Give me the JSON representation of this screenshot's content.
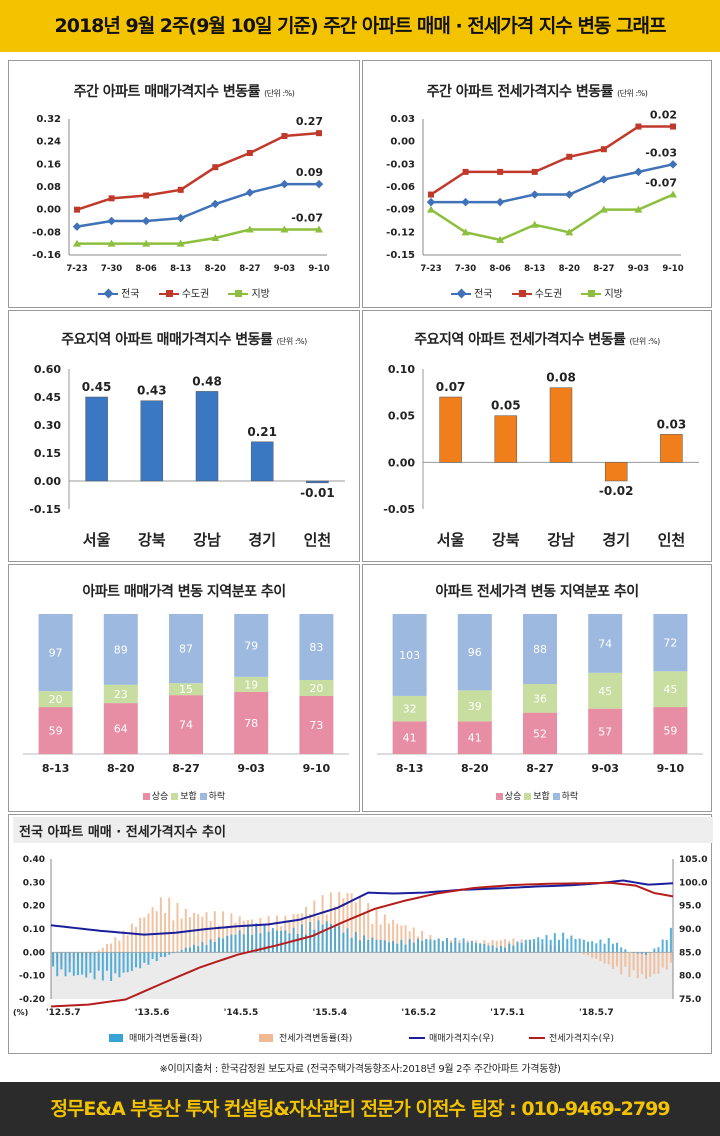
{
  "header": {
    "title": "2018년 9월 2주(9월 10일 기준) 주간 아파트 매매 · 전세가격 지수 변동 그래프"
  },
  "legend_labels": {
    "nation": "전국",
    "capital": "수도권",
    "region": "지방",
    "rise": "상승",
    "flat": "보합",
    "fall": "하락"
  },
  "unit_label": "(단위 :%)",
  "chart_data": [
    {
      "type": "line",
      "title": "주간 아파트 매매가격지수 변동률",
      "categories": [
        "7-23",
        "7-30",
        "8-06",
        "8-13",
        "8-20",
        "8-27",
        "9-03",
        "9-10"
      ],
      "series": [
        {
          "name": "전국",
          "color": "#3f72b8",
          "values": [
            -0.06,
            -0.04,
            -0.04,
            -0.03,
            0.02,
            0.06,
            0.09,
            0.09
          ]
        },
        {
          "name": "수도권",
          "color": "#c0392b",
          "values": [
            0.0,
            0.04,
            0.05,
            0.07,
            0.15,
            0.2,
            0.26,
            0.27
          ]
        },
        {
          "name": "지방",
          "color": "#8cbf3f",
          "values": [
            -0.12,
            -0.12,
            -0.12,
            -0.12,
            -0.1,
            -0.07,
            -0.07,
            -0.07
          ]
        }
      ],
      "labels": [
        {
          "series": 1,
          "index": 7,
          "text": "0.27"
        },
        {
          "series": 0,
          "index": 7,
          "text": "0.09"
        },
        {
          "series": 2,
          "index": 7,
          "text": "-0.07"
        }
      ],
      "ylim": [
        -0.16,
        0.32
      ],
      "yticks": [
        "0.32",
        "0.24",
        "0.16",
        "0.08",
        "0.00",
        "-0.08",
        "-0.16"
      ]
    },
    {
      "type": "line",
      "title": "주간 아파트 전세가격지수 변동률",
      "categories": [
        "7-23",
        "7-30",
        "8-06",
        "8-13",
        "8-20",
        "8-27",
        "9-03",
        "9-10"
      ],
      "series": [
        {
          "name": "전국",
          "color": "#3f72b8",
          "values": [
            -0.08,
            -0.08,
            -0.08,
            -0.07,
            -0.07,
            -0.05,
            -0.04,
            -0.03
          ]
        },
        {
          "name": "수도권",
          "color": "#c0392b",
          "values": [
            -0.07,
            -0.04,
            -0.04,
            -0.04,
            -0.02,
            -0.01,
            0.02,
            0.02
          ]
        },
        {
          "name": "지방",
          "color": "#8cbf3f",
          "values": [
            -0.09,
            -0.12,
            -0.13,
            -0.11,
            -0.12,
            -0.09,
            -0.09,
            -0.07
          ]
        }
      ],
      "labels": [
        {
          "series": 1,
          "index": 7,
          "text": "0.02"
        },
        {
          "series": 0,
          "index": 7,
          "text": "-0.03"
        },
        {
          "series": 2,
          "index": 7,
          "text": "-0.07"
        }
      ],
      "ylim": [
        -0.15,
        0.03
      ],
      "yticks": [
        "0.03",
        "0.00",
        "-0.03",
        "-0.06",
        "-0.09",
        "-0.12",
        "-0.15"
      ]
    },
    {
      "type": "bar",
      "title": "주요지역 아파트 매매가격지수 변동률",
      "categories": [
        "서울",
        "강북",
        "강남",
        "경기",
        "인천"
      ],
      "values": [
        0.45,
        0.43,
        0.48,
        0.21,
        -0.01
      ],
      "value_labels": [
        "0.45",
        "0.43",
        "0.48",
        "0.21",
        "-0.01"
      ],
      "color": "#3a78c4",
      "ylim": [
        -0.15,
        0.6
      ],
      "yticks": [
        "0.60",
        "0.45",
        "0.30",
        "0.15",
        "0.00",
        "-0.15"
      ]
    },
    {
      "type": "bar",
      "title": "주요지역 아파트 전세가격지수 변동률",
      "categories": [
        "서울",
        "강북",
        "강남",
        "경기",
        "인천"
      ],
      "values": [
        0.07,
        0.05,
        0.08,
        -0.02,
        0.03
      ],
      "value_labels": [
        "0.07",
        "0.05",
        "0.08",
        "-0.02",
        "0.03"
      ],
      "color": "#f07e1a",
      "ylim": [
        -0.05,
        0.1
      ],
      "yticks": [
        "0.10",
        "0.05",
        "0.00",
        "-0.05"
      ]
    },
    {
      "type": "bar",
      "stacked": true,
      "title": "아파트 매매가격 변동 지역분포 추이",
      "categories": [
        "8-13",
        "8-20",
        "8-27",
        "9-03",
        "9-10"
      ],
      "series": [
        {
          "name": "상승",
          "color": "#e88ea4",
          "values": [
            59,
            64,
            74,
            78,
            73
          ]
        },
        {
          "name": "보합",
          "color": "#c7dea0",
          "values": [
            20,
            23,
            15,
            19,
            20
          ]
        },
        {
          "name": "하락",
          "color": "#9db9e0",
          "values": [
            97,
            89,
            87,
            79,
            83
          ]
        }
      ]
    },
    {
      "type": "bar",
      "stacked": true,
      "title": "아파트 전세가격 변동 지역분포 추이",
      "categories": [
        "8-13",
        "8-20",
        "8-27",
        "9-03",
        "9-10"
      ],
      "series": [
        {
          "name": "상승",
          "color": "#e88ea4",
          "values": [
            41,
            41,
            52,
            57,
            59
          ]
        },
        {
          "name": "보합",
          "color": "#c7dea0",
          "values": [
            32,
            39,
            36,
            45,
            45
          ]
        },
        {
          "name": "하락",
          "color": "#9db9e0",
          "values": [
            103,
            96,
            88,
            74,
            72
          ]
        }
      ]
    },
    {
      "type": "area",
      "title": "전국 아파트 매매 · 전세가격지수 추이",
      "xticks": [
        "'12.5.7",
        "'13.5.6",
        "'14.5.5",
        "'15.5.4",
        "'16.5.2",
        "'17.5.1",
        "'18.5.7"
      ],
      "x_prefix": "(%)",
      "y_left": {
        "ylim": [
          -0.2,
          0.4
        ],
        "ticks": [
          "0.40",
          "0.30",
          "0.20",
          "0.10",
          "0.00",
          "-0.10",
          "-0.20"
        ]
      },
      "y_right": {
        "ylim": [
          75.0,
          105.0
        ],
        "ticks": [
          "105.0",
          "100.0",
          "95.0",
          "90.0",
          "85.0",
          "80.0",
          "75.0"
        ]
      },
      "series": [
        {
          "name": "매매가격변동률(좌)",
          "color": "#3aa3d6",
          "anchors": [
            [
              0,
              -0.08
            ],
            [
              10,
              -0.1
            ],
            [
              15,
              -0.05
            ],
            [
              22,
              0.02
            ],
            [
              28,
              0.06
            ],
            [
              33,
              0.1
            ],
            [
              38,
              0.08
            ],
            [
              44,
              0.12
            ],
            [
              50,
              0.06
            ],
            [
              55,
              0.04
            ],
            [
              60,
              0.05
            ],
            [
              66,
              0.05
            ],
            [
              72,
              0.02
            ],
            [
              77,
              0.05
            ],
            [
              82,
              0.07
            ],
            [
              87,
              0.04
            ],
            [
              90,
              0.05
            ],
            [
              93,
              0.0
            ],
            [
              96,
              -0.01
            ],
            [
              99,
              0.06
            ],
            [
              100,
              0.1
            ]
          ]
        },
        {
          "name": "전세가격변동률(좌)",
          "color": "#f0b893",
          "anchors": [
            [
              0,
              -0.05
            ],
            [
              6,
              -0.02
            ],
            [
              12,
              0.08
            ],
            [
              18,
              0.2
            ],
            [
              22,
              0.15
            ],
            [
              28,
              0.14
            ],
            [
              33,
              0.12
            ],
            [
              38,
              0.13
            ],
            [
              44,
              0.2
            ],
            [
              48,
              0.23
            ],
            [
              52,
              0.15
            ],
            [
              57,
              0.1
            ],
            [
              62,
              0.05
            ],
            [
              68,
              0.04
            ],
            [
              74,
              0.05
            ],
            [
              80,
              0.03
            ],
            [
              85,
              0.0
            ],
            [
              88,
              -0.03
            ],
            [
              92,
              -0.08
            ],
            [
              96,
              -0.1
            ],
            [
              99,
              -0.06
            ],
            [
              100,
              -0.05
            ]
          ]
        },
        {
          "name": "매매가격지수(우)",
          "color": "#1a1f9c",
          "anchors": [
            [
              0,
              90.8
            ],
            [
              8,
              89.6
            ],
            [
              15,
              88.8
            ],
            [
              20,
              89.2
            ],
            [
              25,
              90.0
            ],
            [
              30,
              90.6
            ],
            [
              35,
              91.0
            ],
            [
              40,
              92.0
            ],
            [
              46,
              94.5
            ],
            [
              51,
              97.8
            ],
            [
              55,
              97.6
            ],
            [
              60,
              97.8
            ],
            [
              66,
              98.4
            ],
            [
              72,
              98.7
            ],
            [
              78,
              99.1
            ],
            [
              84,
              99.4
            ],
            [
              88,
              99.8
            ],
            [
              92,
              100.4
            ],
            [
              96,
              99.5
            ],
            [
              100,
              99.8
            ]
          ]
        },
        {
          "name": "전세가격지수(우)",
          "color": "#b51d1d",
          "anchors": [
            [
              0,
              73.4
            ],
            [
              6,
              73.8
            ],
            [
              12,
              74.9
            ],
            [
              18,
              78.4
            ],
            [
              24,
              81.8
            ],
            [
              30,
              84.5
            ],
            [
              36,
              86.4
            ],
            [
              42,
              88.5
            ],
            [
              47,
              91.5
            ],
            [
              52,
              94.3
            ],
            [
              57,
              96.1
            ],
            [
              62,
              97.6
            ],
            [
              68,
              98.8
            ],
            [
              74,
              99.4
            ],
            [
              80,
              99.7
            ],
            [
              86,
              99.8
            ],
            [
              90,
              99.9
            ],
            [
              94,
              99.3
            ],
            [
              97,
              97.7
            ],
            [
              100,
              97.0
            ]
          ]
        }
      ]
    }
  ],
  "source_note": "※이미지출처 : 한국감정원 보도자료 (전국주택가격동향조사:2018년 9월 2주 주간아파트 가격동향)",
  "footer": {
    "text": "정무E&A 부동산 투자 컨설팅&자산관리 전문가 이전수 팀장 : 010-9469-2799"
  }
}
